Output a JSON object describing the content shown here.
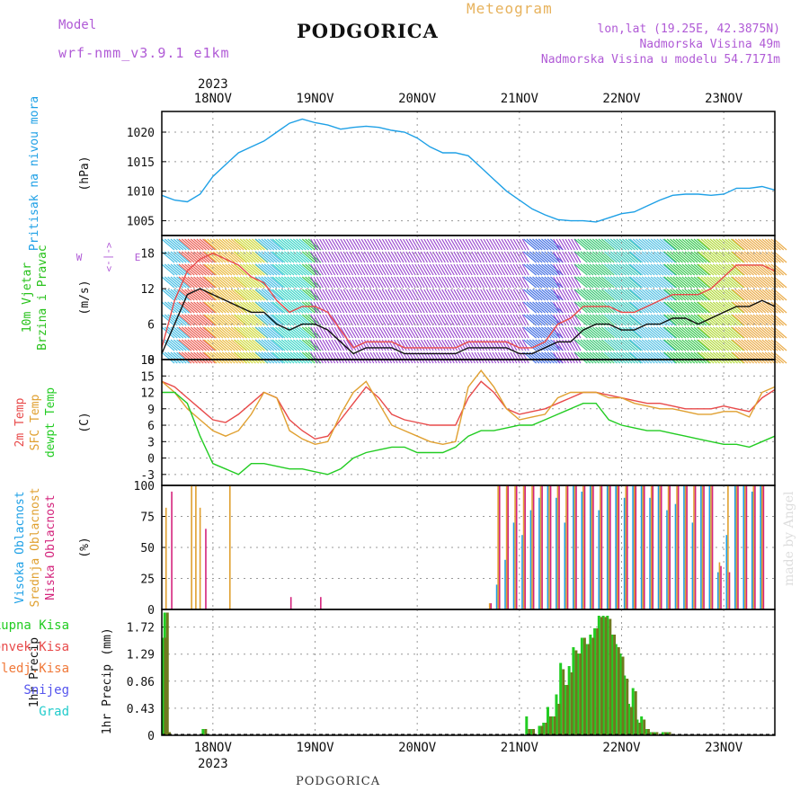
{
  "header": {
    "model_label": "Model",
    "model_name": "wrf-nmm_v3.9.1 e1km",
    "station": "PODGORICA",
    "product": "Meteogram",
    "lonlat": "lon,lat (19.25E, 42.3875N)",
    "elevation": "Nadmorska Visina 49m",
    "model_elevation": "Nadmorska Visina u modelu 54.7171m"
  },
  "footer": {
    "station": "PODGORICA",
    "credit": "made by Angel"
  },
  "time_axis": {
    "year_label": "2023",
    "days": [
      "18NOV",
      "19NOV",
      "20NOV",
      "21NOV",
      "22NOV",
      "23NOV"
    ],
    "range_hours": [
      0,
      144
    ]
  },
  "colors": {
    "pressure": "#1ea0e6",
    "wind_label": "#27c21a",
    "temp2m": "#e84a4a",
    "sfc_temp": "#e0a030",
    "dewpoint": "#22cc22",
    "cloud_high": "#1ea0e6",
    "cloud_mid": "#e0a030",
    "cloud_low": "#d4247c",
    "precip_total": "#22cc22",
    "precip_conv": "#e84a4a",
    "precip_freezing": "#f07838",
    "precip_snow": "#5555ee",
    "precip_hail": "#22cccc"
  },
  "chart_data": [
    {
      "type": "line",
      "panel": "pressure",
      "ylabel_lines": [
        "Pritisak na nivou mora"
      ],
      "unit": "(hPa)",
      "ylim": [
        1002.5,
        1023.5
      ],
      "yticks": [
        1005,
        1010,
        1015,
        1020
      ],
      "grid": true,
      "x": [
        0,
        3,
        6,
        9,
        12,
        15,
        18,
        21,
        24,
        27,
        30,
        33,
        36,
        39,
        42,
        45,
        48,
        51,
        54,
        57,
        60,
        63,
        66,
        69,
        72,
        75,
        78,
        81,
        84,
        87,
        90,
        93,
        96,
        99,
        102,
        105,
        108,
        111,
        114,
        117,
        120,
        123,
        126,
        129,
        132,
        135,
        138,
        141,
        144
      ],
      "series": [
        {
          "name": "",
          "values": [
            1009.3,
            1008.5,
            1008.2,
            1009.5,
            1012.5,
            1014.5,
            1016.5,
            1017.5,
            1018.5,
            1020,
            1021.5,
            1022.2,
            1021.6,
            1021.2,
            1020.5,
            1020.8,
            1021,
            1020.8,
            1020.3,
            1020,
            1019,
            1017.5,
            1016.5,
            1016.5,
            1016,
            1014,
            1012,
            1010,
            1008.5,
            1007,
            1006,
            1005.2,
            1005,
            1005,
            1004.8,
            1005.5,
            1006.2,
            1006.5,
            1007.5,
            1008.5,
            1009.3,
            1009.5,
            1009.5,
            1009.3,
            1009.5,
            1010.5,
            1010.5,
            1010.8,
            1010.2
          ]
        }
      ]
    },
    {
      "type": "line",
      "panel": "wind",
      "ylabel_lines": [
        "10m Vjetar",
        "Brzina i Pravac"
      ],
      "unit": "(m/s)",
      "compass_labels": [
        "W",
        "<-|->",
        "E"
      ],
      "ylim": [
        0,
        21
      ],
      "yticks": [
        0,
        6,
        12,
        18
      ],
      "grid": true,
      "x": [
        0,
        3,
        6,
        9,
        12,
        15,
        18,
        21,
        24,
        27,
        30,
        33,
        36,
        39,
        42,
        45,
        48,
        51,
        54,
        57,
        60,
        63,
        66,
        69,
        72,
        75,
        78,
        81,
        84,
        87,
        90,
        93,
        96,
        99,
        102,
        105,
        108,
        111,
        114,
        117,
        120,
        123,
        126,
        129,
        132,
        135,
        138,
        141,
        144
      ],
      "series": [
        {
          "name": "",
          "values": [
            1,
            6,
            11,
            12,
            11,
            10,
            9,
            8,
            8,
            6,
            5,
            6,
            6,
            5,
            3,
            1,
            2,
            2,
            2,
            1,
            1,
            1,
            1,
            1,
            2,
            2,
            2,
            2,
            1,
            1,
            2,
            3,
            3,
            5,
            6,
            6,
            5,
            5,
            6,
            6,
            7,
            7,
            6,
            7,
            8,
            9,
            9,
            10,
            9
          ]
        },
        {
          "name": "",
          "values": [
            2,
            10,
            15,
            17,
            18,
            17,
            16,
            14,
            13,
            10,
            8,
            9,
            9,
            8,
            5,
            2,
            3,
            3,
            3,
            2,
            2,
            2,
            2,
            2,
            3,
            3,
            3,
            3,
            2,
            2,
            3,
            6,
            7,
            9,
            9,
            9,
            8,
            8,
            9,
            10,
            11,
            11,
            11,
            12,
            14,
            16,
            16,
            16,
            15
          ]
        }
      ]
    },
    {
      "type": "line",
      "panel": "temperature",
      "ylabel_lines": [
        "2m Temp",
        "SFC Temp",
        "dewpt Temp"
      ],
      "unit": "(C)",
      "ylim": [
        -5,
        18
      ],
      "yticks": [
        -3,
        0,
        3,
        6,
        9,
        12,
        15,
        18
      ],
      "grid": true,
      "x": [
        0,
        3,
        6,
        9,
        12,
        15,
        18,
        21,
        24,
        27,
        30,
        33,
        36,
        39,
        42,
        45,
        48,
        51,
        54,
        57,
        60,
        63,
        66,
        69,
        72,
        75,
        78,
        81,
        84,
        87,
        90,
        93,
        96,
        99,
        102,
        105,
        108,
        111,
        114,
        117,
        120,
        123,
        126,
        129,
        132,
        135,
        138,
        141,
        144
      ],
      "series": [
        {
          "name": "2m Temp",
          "values": [
            14,
            13,
            11,
            9,
            7,
            6.5,
            8,
            10,
            12,
            11,
            7,
            5,
            3.5,
            4,
            7,
            10,
            13,
            11,
            8,
            7,
            6.5,
            6,
            6,
            6,
            11,
            14,
            12,
            9,
            8,
            8.5,
            9,
            10,
            11,
            12,
            12,
            11.5,
            11,
            10.5,
            10,
            10,
            9.5,
            9,
            9,
            9,
            9.5,
            9,
            8.5,
            11,
            12.5
          ]
        },
        {
          "name": "SFC Temp",
          "values": [
            14,
            12,
            9,
            7,
            5,
            4,
            5,
            8,
            12,
            11,
            5,
            3.5,
            2.5,
            3,
            8,
            12,
            14,
            10,
            6,
            5,
            4,
            3,
            2.5,
            3,
            13,
            16,
            13,
            9,
            7,
            7.5,
            8,
            11,
            12,
            12,
            12,
            11,
            11,
            10,
            9.5,
            9,
            9,
            8.5,
            8,
            8,
            8.5,
            8.5,
            7.5,
            12,
            13
          ]
        },
        {
          "name": "dewpt Temp",
          "values": [
            12,
            12,
            10,
            4,
            -1,
            -2,
            -3,
            -1,
            -1,
            -1.5,
            -2,
            -2,
            -2.5,
            -3,
            -2,
            0,
            1,
            1.5,
            2,
            2,
            1,
            1,
            1,
            2,
            4,
            5,
            5,
            5.5,
            6,
            6,
            7,
            8,
            9,
            10,
            10,
            7,
            6,
            5.5,
            5,
            5,
            4.5,
            4,
            3.5,
            3,
            2.5,
            2.5,
            2,
            3,
            4
          ]
        }
      ]
    },
    {
      "type": "bar",
      "panel": "cloud",
      "ylabel_lines": [
        "Visoka Oblacnost",
        "Srednja Oblacnost",
        "Niska Oblacnost"
      ],
      "unit": "(%)",
      "ylim": [
        0,
        100
      ],
      "yticks": [
        0,
        25,
        50,
        75,
        100
      ],
      "grid": true,
      "x": [
        1,
        2,
        7,
        8,
        9,
        10,
        16,
        30,
        37,
        77,
        79,
        81,
        83,
        85,
        87,
        89,
        91,
        93,
        95,
        97,
        99,
        101,
        103,
        105,
        107,
        109,
        111,
        113,
        115,
        117,
        119,
        121,
        123,
        125,
        127,
        129,
        131,
        133,
        135,
        137,
        139,
        141
      ],
      "series": [
        {
          "name": "Visoka Oblacnost",
          "values": [
            0,
            0,
            0,
            0,
            0,
            0,
            0,
            0,
            0,
            0,
            20,
            40,
            70,
            60,
            80,
            90,
            100,
            90,
            70,
            100,
            95,
            100,
            80,
            100,
            100,
            90,
            100,
            100,
            90,
            100,
            80,
            85,
            100,
            70,
            100,
            100,
            30,
            60,
            100,
            100,
            95,
            100
          ]
        },
        {
          "name": "Srednja Oblacnost",
          "values": [
            82,
            0,
            100,
            100,
            82,
            0,
            100,
            0,
            0,
            5,
            100,
            100,
            100,
            100,
            100,
            100,
            100,
            100,
            100,
            100,
            100,
            100,
            100,
            100,
            100,
            100,
            100,
            100,
            100,
            100,
            100,
            100,
            100,
            100,
            100,
            100,
            38,
            100,
            100,
            100,
            100,
            100
          ]
        },
        {
          "name": "Niska Oblacnost",
          "values": [
            0,
            95,
            0,
            0,
            0,
            65,
            0,
            10,
            10,
            5,
            100,
            100,
            100,
            100,
            100,
            100,
            100,
            100,
            100,
            100,
            100,
            100,
            100,
            100,
            100,
            100,
            100,
            100,
            100,
            100,
            100,
            100,
            100,
            100,
            100,
            100,
            35,
            30,
            100,
            100,
            100,
            100
          ]
        }
      ]
    },
    {
      "type": "bar",
      "panel": "precip",
      "legend": [
        "Ukupna Kisa",
        "Konvek.Kisa",
        "Zaledj.Kisa",
        "Snijeg",
        "Grad"
      ],
      "ylabel_lines": [
        "1hr Precip"
      ],
      "unit": "(mm)",
      "ylim": [
        0,
        2
      ],
      "yticks": [
        0,
        0.43,
        0.86,
        1.29,
        1.72
      ],
      "grid": true,
      "x": [
        0.5,
        1,
        1.5,
        10,
        86,
        87,
        89,
        90,
        91,
        92,
        93,
        94,
        95,
        96,
        97,
        98,
        99,
        100,
        101,
        102,
        103,
        104,
        105,
        106,
        107,
        108,
        109,
        110,
        111,
        112,
        113,
        114,
        115,
        116,
        118,
        119
      ],
      "series": [
        {
          "name": "Ukupna Kisa",
          "values": [
            1.55,
            1.95,
            0.05,
            0.1,
            0.3,
            0.1,
            0.15,
            0.2,
            0.45,
            0.3,
            0.65,
            1.15,
            0.8,
            1.1,
            1.4,
            1.3,
            1.55,
            1.45,
            1.6,
            1.7,
            1.9,
            1.9,
            1.9,
            1.6,
            1.45,
            1.3,
            0.95,
            0.5,
            0.75,
            0.25,
            0.3,
            0.1,
            0.05,
            0.05,
            0.05,
            0.05
          ]
        },
        {
          "name": "Konvek.Kisa",
          "values": [
            1.55,
            1.95,
            0.05,
            0.1,
            0.1,
            0.1,
            0.15,
            0.2,
            0.3,
            0.3,
            0.5,
            1.05,
            0.8,
            1.0,
            1.35,
            1.3,
            1.55,
            1.45,
            1.55,
            1.7,
            1.88,
            1.88,
            1.85,
            1.6,
            1.4,
            1.25,
            0.9,
            0.45,
            0.7,
            0.2,
            0.25,
            0.1,
            0.05,
            0.05,
            0.05,
            0.05
          ]
        }
      ]
    }
  ]
}
